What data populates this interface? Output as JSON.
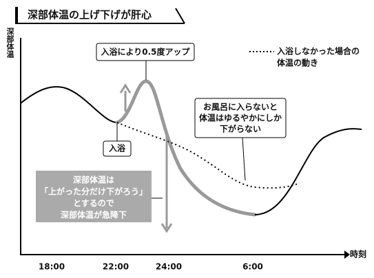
{
  "title": "深部体温の上げ下げが肝心",
  "y_axis_label": "深部体温",
  "x_axis_label": "時刻",
  "x_labels": [
    "18:00",
    "22:00",
    "24:00",
    "6:00"
  ],
  "annotations": {
    "bath_rise": "入浴により0.5度アップ",
    "legend": [
      "入浴しなかった場合の",
      "体温の動き"
    ],
    "no_bath": [
      "お風呂に入らないと",
      "体温はゆるやかにしか",
      "下がらない"
    ],
    "bath": "入浴",
    "drop": [
      "深部体温は",
      "「上がった分だけ下がろう」",
      "とするので",
      "深部体温が急降下"
    ]
  }
}
